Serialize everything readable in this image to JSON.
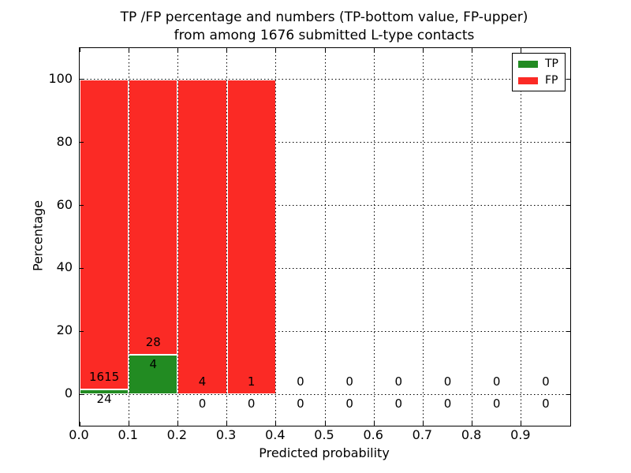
{
  "figure": {
    "title_line1": "TP /FP percentage and numbers (TP-bottom value, FP-upper)",
    "title_line2": "from among 1676 submitted L-type contacts"
  },
  "chart_data": {
    "type": "bar",
    "stacked": true,
    "normalized_to_percent": true,
    "title": "TP /FP percentage and numbers (TP-bottom value, FP-upper)\nfrom among 1676 submitted L-type contacts",
    "total_submitted": 1676,
    "xlabel": "Predicted probability",
    "ylabel": "Percentage",
    "xlim": [
      0.0,
      1.0
    ],
    "ylim": [
      -10,
      110
    ],
    "xticks": [
      "0.0",
      "0.1",
      "0.2",
      "0.3",
      "0.4",
      "0.5",
      "0.6",
      "0.7",
      "0.8",
      "0.9"
    ],
    "yticks": [
      0,
      20,
      40,
      60,
      80,
      100
    ],
    "grid": {
      "style": "dotted",
      "color": "#000000"
    },
    "colors": {
      "tp": "#228b22",
      "fp": "#fb2a25"
    },
    "legend": {
      "position": "upper right",
      "entries": [
        {
          "label": "TP",
          "color": "#228b22"
        },
        {
          "label": "FP",
          "color": "#fb2a25"
        }
      ]
    },
    "bins": [
      {
        "x_start": 0.0,
        "x_end": 0.1,
        "tp": 24,
        "fp": 1615,
        "tp_pct": 1.46,
        "fp_pct": 98.54
      },
      {
        "x_start": 0.1,
        "x_end": 0.2,
        "tp": 4,
        "fp": 28,
        "tp_pct": 12.5,
        "fp_pct": 87.5
      },
      {
        "x_start": 0.2,
        "x_end": 0.3,
        "tp": 0,
        "fp": 4,
        "tp_pct": 0,
        "fp_pct": 100
      },
      {
        "x_start": 0.3,
        "x_end": 0.4,
        "tp": 0,
        "fp": 1,
        "tp_pct": 0,
        "fp_pct": 100
      },
      {
        "x_start": 0.4,
        "x_end": 0.5,
        "tp": 0,
        "fp": 0,
        "tp_pct": 0,
        "fp_pct": 0
      },
      {
        "x_start": 0.5,
        "x_end": 0.6,
        "tp": 0,
        "fp": 0,
        "tp_pct": 0,
        "fp_pct": 0
      },
      {
        "x_start": 0.6,
        "x_end": 0.7,
        "tp": 0,
        "fp": 0,
        "tp_pct": 0,
        "fp_pct": 0
      },
      {
        "x_start": 0.7,
        "x_end": 0.8,
        "tp": 0,
        "fp": 0,
        "tp_pct": 0,
        "fp_pct": 0
      },
      {
        "x_start": 0.8,
        "x_end": 0.9,
        "tp": 0,
        "fp": 0,
        "tp_pct": 0,
        "fp_pct": 0
      },
      {
        "x_start": 0.9,
        "x_end": 1.0,
        "tp": 0,
        "fp": 0,
        "tp_pct": 0,
        "fp_pct": 0
      }
    ]
  }
}
